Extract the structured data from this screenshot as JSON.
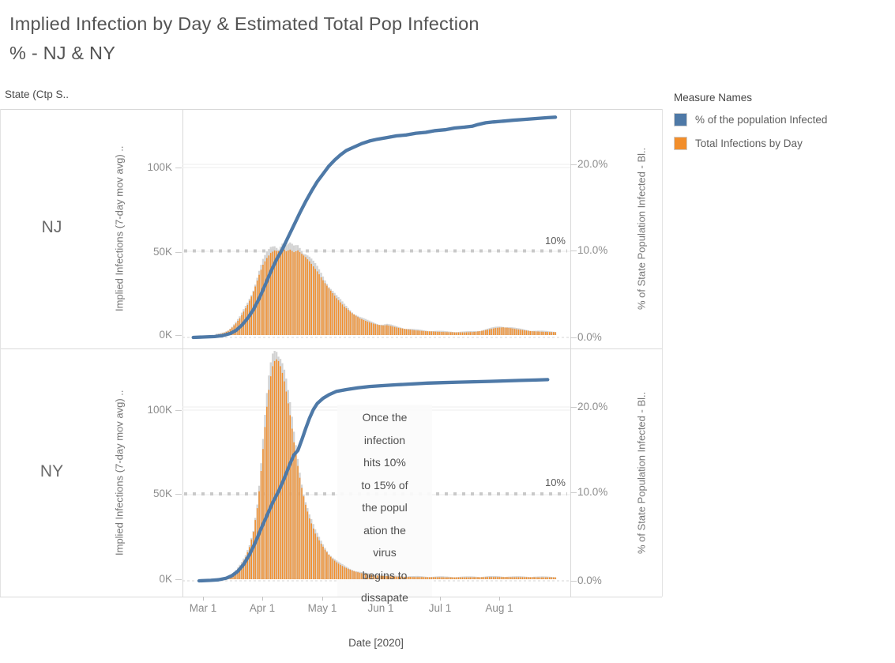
{
  "title": "Implied Infection by Day & Estimated Total Pop Infection\n%  - NJ & NY",
  "row_header": "State (Ctp S..",
  "legend": {
    "title": "Measure Names",
    "items": [
      {
        "label": "% of the population Infected",
        "color": "#4e79a7"
      },
      {
        "label": "Total Infections by Day",
        "color": "#f28e2b"
      }
    ]
  },
  "x_axis": {
    "title": "Date [2020]",
    "ticks": [
      "Mar 1",
      "Apr 1",
      "May 1",
      "Jun 1",
      "Jul 1",
      "Aug 1"
    ]
  },
  "panels": [
    {
      "state": "NJ",
      "left_axis_title": "Implied Infections (7-day mov avg) ..",
      "right_axis_title": "% of State Population Infected - Bl..",
      "left_ticks": [
        "100K",
        "50K",
        "0K"
      ],
      "right_ticks": [
        "20.0%",
        "10.0%",
        "0.0%"
      ],
      "ref_label": "10%"
    },
    {
      "state": "NY",
      "left_axis_title": "Implied Infections (7-day mov avg) ..",
      "right_axis_title": "% of State Population Infected - Bl..",
      "left_ticks": [
        "100K",
        "50K",
        "0K"
      ],
      "right_ticks": [
        "20.0%",
        "10.0%",
        "0.0%"
      ],
      "ref_label": "10%",
      "annotation": "Once the\ninfection\nhits 10%\nto 15% of\nthe popul\nation the\nvirus\nbegins to\ndissapate"
    }
  ],
  "colors": {
    "line_blue": "#4e79a7",
    "bar_orange": "#f28e2b",
    "bar_gray": "#d3d3d3",
    "ref_dotted": "#c9c9c9",
    "gridline": "#ededed",
    "zero_dash": "#d4d4d4"
  },
  "chart_data": [
    {
      "type": "bar+line",
      "state": "NJ",
      "x_unit": "days since Mar 1 2020",
      "x_tick_days": [
        0,
        31,
        61,
        92,
        122,
        153
      ],
      "y_left": {
        "label": "Implied Infections (7-day mov avg)",
        "ticks_K": [
          0,
          50,
          100
        ]
      },
      "y_right": {
        "label": "% of State Population Infected",
        "ticks_pct": [
          0,
          10,
          20
        ]
      },
      "reference_line_pct": 10,
      "bars": {
        "name": "Total Infections by Day",
        "unit": "thousands",
        "points": [
          [
            7,
            0.3
          ],
          [
            9,
            0.7
          ],
          [
            11,
            1.4
          ],
          [
            13,
            2.6
          ],
          [
            15,
            4.5
          ],
          [
            17,
            7
          ],
          [
            19,
            10
          ],
          [
            21,
            14
          ],
          [
            23,
            18
          ],
          [
            25,
            23
          ],
          [
            27,
            29
          ],
          [
            29,
            36
          ],
          [
            31,
            42
          ],
          [
            33,
            46
          ],
          [
            35,
            49
          ],
          [
            37,
            50.5
          ],
          [
            39,
            50
          ],
          [
            41,
            52
          ],
          [
            43,
            50
          ],
          [
            45,
            51
          ],
          [
            47,
            49.5
          ],
          [
            49,
            50.5
          ],
          [
            51,
            48.5
          ],
          [
            53,
            46.5
          ],
          [
            55,
            44
          ],
          [
            57,
            41
          ],
          [
            59,
            38
          ],
          [
            61,
            34.5
          ],
          [
            63,
            31
          ],
          [
            65,
            28
          ],
          [
            67,
            25
          ],
          [
            69,
            22
          ],
          [
            71,
            19.5
          ],
          [
            73,
            17
          ],
          [
            75,
            15
          ],
          [
            77,
            13
          ],
          [
            79,
            11.5
          ],
          [
            81,
            10
          ],
          [
            83,
            9
          ],
          [
            85,
            8
          ],
          [
            87,
            7.2
          ],
          [
            89,
            6.5
          ],
          [
            91,
            6
          ],
          [
            93,
            5.7
          ],
          [
            95,
            5.9
          ],
          [
            97,
            5.4
          ],
          [
            99,
            4.8
          ],
          [
            101,
            4.3
          ],
          [
            103,
            3.9
          ],
          [
            105,
            3.5
          ],
          [
            107,
            3.2
          ],
          [
            109,
            2.9
          ],
          [
            111,
            2.7
          ],
          [
            113,
            2.5
          ],
          [
            115,
            2.3
          ],
          [
            117,
            2.2
          ],
          [
            119,
            2.1
          ],
          [
            121,
            2
          ],
          [
            123,
            1.9
          ],
          [
            125,
            1.8
          ],
          [
            127,
            1.7
          ],
          [
            129,
            1.7
          ],
          [
            131,
            1.6
          ],
          [
            133,
            1.6
          ],
          [
            135,
            1.6
          ],
          [
            137,
            1.7
          ],
          [
            139,
            1.8
          ],
          [
            141,
            2
          ],
          [
            143,
            2.3
          ],
          [
            145,
            2.7
          ],
          [
            147,
            3.2
          ],
          [
            149,
            3.7
          ],
          [
            151,
            4.2
          ],
          [
            153,
            4.5
          ],
          [
            155,
            4.6
          ],
          [
            157,
            4.4
          ],
          [
            159,
            4.1
          ],
          [
            161,
            3.7
          ],
          [
            163,
            3.3
          ],
          [
            165,
            3
          ],
          [
            167,
            2.7
          ],
          [
            169,
            2.4
          ],
          [
            171,
            2.2
          ],
          [
            173,
            2.1
          ],
          [
            175,
            2
          ],
          [
            177,
            1.9
          ],
          [
            179,
            1.8
          ],
          [
            181,
            1.8
          ],
          [
            183,
            1.7
          ]
        ]
      },
      "line": {
        "name": "% of the population Infected",
        "unit": "percent",
        "points": [
          [
            -5,
            0
          ],
          [
            0,
            0.05
          ],
          [
            6,
            0.1
          ],
          [
            10,
            0.2
          ],
          [
            14,
            0.45
          ],
          [
            17,
            0.8
          ],
          [
            20,
            1.4
          ],
          [
            23,
            2.2
          ],
          [
            26,
            3.2
          ],
          [
            29,
            4.5
          ],
          [
            32,
            6
          ],
          [
            35,
            7.6
          ],
          [
            38,
            9
          ],
          [
            41,
            10.2
          ],
          [
            44,
            11.6
          ],
          [
            47,
            13
          ],
          [
            50,
            14.4
          ],
          [
            53,
            15.7
          ],
          [
            56,
            16.9
          ],
          [
            59,
            18
          ],
          [
            62,
            18.9
          ],
          [
            65,
            19.8
          ],
          [
            68,
            20.5
          ],
          [
            71,
            21.1
          ],
          [
            74,
            21.6
          ],
          [
            78,
            22
          ],
          [
            82,
            22.4
          ],
          [
            86,
            22.7
          ],
          [
            90,
            22.9
          ],
          [
            95,
            23.1
          ],
          [
            100,
            23.3
          ],
          [
            105,
            23.4
          ],
          [
            110,
            23.6
          ],
          [
            115,
            23.7
          ],
          [
            120,
            23.9
          ],
          [
            125,
            24
          ],
          [
            130,
            24.2
          ],
          [
            135,
            24.3
          ],
          [
            139,
            24.4
          ],
          [
            142,
            24.6
          ],
          [
            146,
            24.8
          ],
          [
            150,
            24.9
          ],
          [
            155,
            25
          ],
          [
            160,
            25.1
          ],
          [
            166,
            25.2
          ],
          [
            172,
            25.3
          ],
          [
            178,
            25.4
          ],
          [
            182,
            25.45
          ]
        ]
      }
    },
    {
      "type": "bar+line",
      "state": "NY",
      "x_unit": "days since Mar 1 2020",
      "x_tick_days": [
        0,
        31,
        61,
        92,
        122,
        153
      ],
      "y_left": {
        "label": "Implied Infections (7-day mov avg)",
        "ticks_K": [
          0,
          50,
          100
        ]
      },
      "y_right": {
        "label": "% of State Population Infected",
        "ticks_pct": [
          0,
          10,
          20
        ]
      },
      "reference_line_pct": 10,
      "bars": {
        "name": "Total Infections by Day",
        "unit": "thousands",
        "points": [
          [
            8,
            0.3
          ],
          [
            10,
            0.6
          ],
          [
            12,
            1.1
          ],
          [
            14,
            2
          ],
          [
            16,
            3.5
          ],
          [
            18,
            6
          ],
          [
            20,
            9
          ],
          [
            22,
            13
          ],
          [
            24,
            19
          ],
          [
            26,
            28
          ],
          [
            28,
            42
          ],
          [
            29,
            52
          ],
          [
            30,
            64
          ],
          [
            31,
            77
          ],
          [
            32,
            90
          ],
          [
            33,
            102
          ],
          [
            34,
            112
          ],
          [
            35,
            120
          ],
          [
            36,
            126
          ],
          [
            37,
            129
          ],
          [
            38,
            130
          ],
          [
            39,
            129
          ],
          [
            40,
            126
          ],
          [
            41,
            122
          ],
          [
            42,
            117
          ],
          [
            43,
            111
          ],
          [
            44,
            104
          ],
          [
            45,
            97
          ],
          [
            46,
            89
          ],
          [
            47,
            81
          ],
          [
            48,
            74
          ],
          [
            49,
            67
          ],
          [
            50,
            60
          ],
          [
            51,
            54
          ],
          [
            52,
            49
          ],
          [
            53,
            44
          ],
          [
            54,
            40
          ],
          [
            55,
            36
          ],
          [
            56,
            33
          ],
          [
            57,
            30
          ],
          [
            58,
            27
          ],
          [
            59,
            25
          ],
          [
            60,
            23
          ],
          [
            61,
            21
          ],
          [
            63,
            17.5
          ],
          [
            65,
            14.5
          ],
          [
            67,
            12
          ],
          [
            69,
            10
          ],
          [
            71,
            8.5
          ],
          [
            73,
            7.2
          ],
          [
            75,
            6.1
          ],
          [
            77,
            5.2
          ],
          [
            79,
            4.4
          ],
          [
            81,
            3.8
          ],
          [
            83,
            3.3
          ],
          [
            85,
            2.9
          ],
          [
            87,
            2.6
          ],
          [
            89,
            2.3
          ],
          [
            91,
            2.1
          ],
          [
            93,
            1.9
          ],
          [
            95,
            1.8
          ],
          [
            97,
            1.7
          ],
          [
            99,
            1.6
          ],
          [
            101,
            1.5
          ],
          [
            103,
            1.5
          ],
          [
            105,
            1.4
          ],
          [
            107,
            1.4
          ],
          [
            109,
            1.3
          ],
          [
            111,
            1.3
          ],
          [
            113,
            1.3
          ],
          [
            115,
            1.2
          ],
          [
            117,
            1.2
          ],
          [
            119,
            1.2
          ],
          [
            121,
            1.2
          ],
          [
            123,
            1.2
          ],
          [
            125,
            1.1
          ],
          [
            127,
            1.1
          ],
          [
            129,
            1.1
          ],
          [
            131,
            1.1
          ],
          [
            133,
            1.1
          ],
          [
            135,
            1.1
          ],
          [
            137,
            1.1
          ],
          [
            139,
            1.2
          ],
          [
            141,
            1.2
          ],
          [
            143,
            1.2
          ],
          [
            145,
            1.2
          ],
          [
            147,
            1.3
          ],
          [
            149,
            1.3
          ],
          [
            151,
            1.3
          ],
          [
            153,
            1.3
          ],
          [
            155,
            1.3
          ],
          [
            157,
            1.3
          ],
          [
            159,
            1.2
          ],
          [
            161,
            1.2
          ],
          [
            163,
            1.2
          ],
          [
            165,
            1.2
          ],
          [
            167,
            1.2
          ],
          [
            169,
            1.2
          ],
          [
            171,
            1.2
          ],
          [
            173,
            1.1
          ],
          [
            175,
            1.1
          ],
          [
            177,
            1.1
          ],
          [
            179,
            1.1
          ],
          [
            181,
            1.1
          ],
          [
            183,
            1.1
          ]
        ]
      },
      "line": {
        "name": "% of the population Infected",
        "unit": "percent",
        "points": [
          [
            -2,
            0
          ],
          [
            4,
            0.05
          ],
          [
            8,
            0.12
          ],
          [
            12,
            0.3
          ],
          [
            15,
            0.6
          ],
          [
            18,
            1.1
          ],
          [
            21,
            1.9
          ],
          [
            24,
            3
          ],
          [
            27,
            4.4
          ],
          [
            30,
            6
          ],
          [
            33,
            7.5
          ],
          [
            36,
            9
          ],
          [
            39,
            10.3
          ],
          [
            42,
            11.8
          ],
          [
            45,
            13.5
          ],
          [
            47,
            14.5
          ],
          [
            49,
            15
          ],
          [
            51,
            16.2
          ],
          [
            53,
            17.5
          ],
          [
            55,
            18.7
          ],
          [
            57,
            19.7
          ],
          [
            59,
            20.4
          ],
          [
            62,
            21
          ],
          [
            65,
            21.4
          ],
          [
            69,
            21.8
          ],
          [
            74,
            22
          ],
          [
            80,
            22.2
          ],
          [
            86,
            22.35
          ],
          [
            92,
            22.45
          ],
          [
            100,
            22.55
          ],
          [
            108,
            22.65
          ],
          [
            116,
            22.75
          ],
          [
            124,
            22.8
          ],
          [
            132,
            22.85
          ],
          [
            140,
            22.9
          ],
          [
            148,
            22.95
          ],
          [
            156,
            23
          ],
          [
            164,
            23.05
          ],
          [
            172,
            23.1
          ],
          [
            178,
            23.15
          ]
        ]
      }
    }
  ]
}
